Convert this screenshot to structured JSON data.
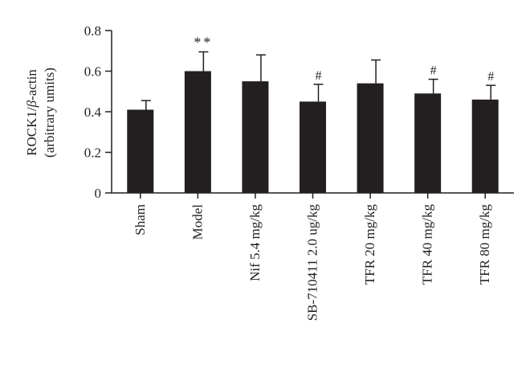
{
  "chart_data": {
    "type": "bar",
    "ylabel_main": "ROCK1/",
    "ylabel_beta": "β",
    "ylabel_tail": "-actin",
    "ylabel_sub": "(arbitrary umits)",
    "ylim": [
      0,
      0.8
    ],
    "yticks": [
      0,
      0.2,
      0.4,
      0.6,
      0.8
    ],
    "ytick_labels": [
      "0",
      "0.2",
      "0.4",
      "0.6",
      "0.8"
    ],
    "categories": [
      "Sham",
      "Model",
      "Nif 5.4 mg/kg",
      "SB-710411 2.0 ug/kg",
      "TFR 20 mg/kg",
      "TFR 40 mg/kg",
      "TFR 80 mg/kg"
    ],
    "values": [
      0.41,
      0.6,
      0.55,
      0.45,
      0.54,
      0.49,
      0.46
    ],
    "error_upper": [
      0.455,
      0.695,
      0.68,
      0.535,
      0.655,
      0.56,
      0.53
    ],
    "annotations": [
      "",
      "**",
      "",
      "#",
      "",
      "#",
      "#"
    ],
    "bar_color": "#231f20"
  }
}
